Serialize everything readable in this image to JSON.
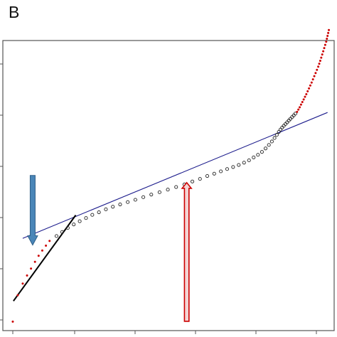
{
  "panel_label": "B",
  "colors": {
    "frame": "#555555",
    "marker_black": "#222222",
    "marker_red": "#cc0000",
    "fit_blue": "#1c1c8c",
    "fit_black": "#000000",
    "arrow_blue_fill": "#4a86b8",
    "arrow_blue_edge": "#2f5f88",
    "arrow_red_fill": "#f4d4d4",
    "arrow_red_edge": "#cc0000"
  },
  "chart_data": {
    "type": "scatter",
    "title": "",
    "xlabel": "",
    "ylabel": "",
    "xlim": [
      0,
      100
    ],
    "ylim": [
      0,
      100
    ],
    "x_tick_count": 5,
    "y_tick_count": 6,
    "tick_labels_shown": false,
    "grid": false,
    "legend": "none",
    "series": [
      {
        "marker": "open-circle",
        "color": "black",
        "x": [
          16.2,
          17.9,
          19.6,
          21.4,
          23.2,
          25.1,
          27.0,
          29.0,
          31.1,
          33.2,
          35.4,
          37.7,
          40.0,
          42.4,
          44.8,
          47.3,
          49.8,
          52.3,
          54.8,
          57.2,
          59.5,
          61.7,
          63.8,
          65.8,
          67.7,
          69.5,
          71.2,
          72.8,
          74.3,
          75.7,
          77.0,
          78.2,
          79.3,
          80.3,
          81.2,
          82.0,
          82.7,
          83.3,
          83.8,
          84.3,
          84.8,
          85.3,
          85.8,
          86.3,
          86.8,
          87.3,
          87.8,
          88.3
        ],
        "y": [
          32.6,
          34.0,
          35.4,
          36.6,
          37.7,
          38.8,
          39.9,
          40.8,
          41.8,
          42.7,
          43.5,
          44.3,
          45.1,
          46.0,
          46.9,
          47.7,
          48.6,
          49.5,
          50.4,
          51.4,
          52.3,
          53.3,
          54.1,
          54.9,
          55.7,
          56.4,
          57.1,
          57.9,
          58.7,
          59.7,
          60.6,
          61.6,
          62.8,
          64.0,
          65.2,
          66.4,
          67.5,
          68.5,
          69.3,
          70.0,
          70.6,
          71.2,
          71.8,
          72.4,
          73.0,
          73.6,
          74.2,
          74.8
        ]
      },
      {
        "marker": "dot",
        "color": "red",
        "x": [
          3.0,
          4.5,
          6.0,
          7.3,
          8.5,
          9.7,
          10.8,
          11.9,
          13.0,
          14.1
        ],
        "y": [
          3.1,
          12.2,
          16.2,
          19.0,
          21.4,
          23.7,
          25.8,
          27.6,
          29.3,
          30.9
        ]
      },
      {
        "marker": "dot",
        "color": "red",
        "x": [
          88.8,
          89.2,
          89.6,
          90.0,
          90.4,
          90.8,
          91.2,
          91.6,
          92.0,
          92.4,
          92.8,
          93.2,
          93.6,
          94.0,
          94.4,
          94.8,
          95.2,
          95.5,
          95.8,
          96.1,
          96.4,
          96.7,
          97.0,
          97.3,
          97.6,
          97.8,
          98.0,
          98.2,
          98.4
        ],
        "y": [
          75.4,
          76.2,
          77.0,
          77.9,
          78.8,
          79.7,
          80.6,
          81.5,
          82.5,
          83.5,
          84.5,
          85.5,
          86.6,
          87.7,
          88.8,
          89.9,
          91.0,
          92.0,
          93.0,
          94.1,
          95.2,
          96.3,
          97.4,
          98.5,
          99.6,
          100.6,
          101.6,
          102.6,
          103.6
        ]
      }
    ],
    "fit_lines": [
      {
        "name_shown": false,
        "color": "blue",
        "x": [
          6.0,
          98.0
        ],
        "y": [
          31.8,
          75.2
        ]
      },
      {
        "name_shown": false,
        "color": "black",
        "x": [
          3.2,
          22.0
        ],
        "y": [
          10.2,
          39.8
        ]
      }
    ],
    "arrows": [
      {
        "color": "blue",
        "direction": "down",
        "x": 9.0,
        "y_from": 53.5,
        "y_to": 29.5
      },
      {
        "color": "red",
        "direction": "up",
        "x": 55.5,
        "y_from": 3.2,
        "y_to": 51.0
      }
    ]
  }
}
